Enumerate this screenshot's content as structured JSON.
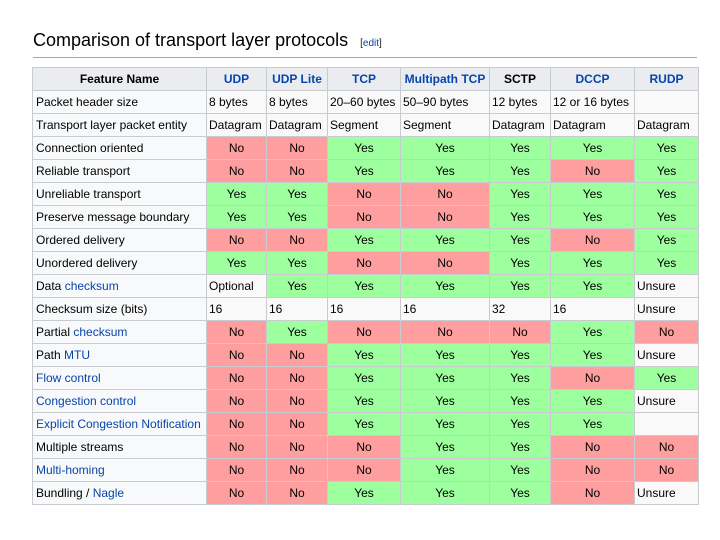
{
  "heading": {
    "title": "Comparison of transport layer protocols",
    "edit_open": "[",
    "edit_label": "edit",
    "edit_close": "]"
  },
  "colors": {
    "yes": "#9eff9e",
    "no": "#ff9e9e",
    "link": "#0645ad",
    "header": "#eaecf0"
  },
  "table": {
    "corner": "Feature Name",
    "columns": [
      "UDP",
      "UDP Lite",
      "TCP",
      "Multipath TCP",
      "SCTP",
      "DCCP",
      "RUDP"
    ],
    "rows": [
      {
        "name": "Packet header size",
        "cells": [
          "8 bytes",
          "8 bytes",
          "20–60 bytes",
          "50–90 bytes",
          "12 bytes",
          "12 or 16 bytes",
          ""
        ]
      },
      {
        "name": "Transport layer packet entity",
        "cells": [
          "Datagram",
          "Datagram",
          "Segment",
          "Segment",
          "Datagram",
          "Datagram",
          "Datagram"
        ]
      },
      {
        "name": "Connection oriented",
        "cells": [
          "No",
          "No",
          "Yes",
          "Yes",
          "Yes",
          "Yes",
          "Yes"
        ]
      },
      {
        "name": "Reliable transport",
        "cells": [
          "No",
          "No",
          "Yes",
          "Yes",
          "Yes",
          "No",
          "Yes"
        ]
      },
      {
        "name": "Unreliable transport",
        "cells": [
          "Yes",
          "Yes",
          "No",
          "No",
          "Yes",
          "Yes",
          "Yes"
        ]
      },
      {
        "name": "Preserve message boundary",
        "cells": [
          "Yes",
          "Yes",
          "No",
          "No",
          "Yes",
          "Yes",
          "Yes"
        ]
      },
      {
        "name": "Ordered delivery",
        "cells": [
          "No",
          "No",
          "Yes",
          "Yes",
          "Yes",
          "No",
          "Yes"
        ]
      },
      {
        "name": "Unordered delivery",
        "cells": [
          "Yes",
          "Yes",
          "No",
          "No",
          "Yes",
          "Yes",
          "Yes"
        ]
      },
      {
        "name_pre": "Data ",
        "name_link": "checksum",
        "cells": [
          "Optional",
          "Yes",
          "Yes",
          "Yes",
          "Yes",
          "Yes",
          "Unsure"
        ]
      },
      {
        "name": "Checksum size (bits)",
        "cells": [
          "16",
          "16",
          "16",
          "16",
          "32",
          "16",
          "Unsure"
        ]
      },
      {
        "name_pre": "Partial ",
        "name_link": "checksum",
        "cells": [
          "No",
          "Yes",
          "No",
          "No",
          "No",
          "Yes",
          "No"
        ]
      },
      {
        "name_pre": "Path ",
        "name_link": "MTU",
        "cells": [
          "No",
          "No",
          "Yes",
          "Yes",
          "Yes",
          "Yes",
          "Unsure"
        ]
      },
      {
        "name_link": "Flow control",
        "cells": [
          "No",
          "No",
          "Yes",
          "Yes",
          "Yes",
          "No",
          "Yes"
        ]
      },
      {
        "name_link": "Congestion control",
        "cells": [
          "No",
          "No",
          "Yes",
          "Yes",
          "Yes",
          "Yes",
          "Unsure"
        ]
      },
      {
        "name_link": "Explicit Congestion Notification",
        "cells": [
          "No",
          "No",
          "Yes",
          "Yes",
          "Yes",
          "Yes",
          ""
        ]
      },
      {
        "name": "Multiple streams",
        "cells": [
          "No",
          "No",
          "No",
          "Yes",
          "Yes",
          "No",
          "No"
        ]
      },
      {
        "name_link": "Multi-homing",
        "cells": [
          "No",
          "No",
          "No",
          "Yes",
          "Yes",
          "No",
          "No"
        ]
      },
      {
        "name_pre": "Bundling / ",
        "name_link": "Nagle",
        "cells": [
          "No",
          "No",
          "Yes",
          "Yes",
          "Yes",
          "No",
          "Unsure"
        ]
      }
    ]
  }
}
